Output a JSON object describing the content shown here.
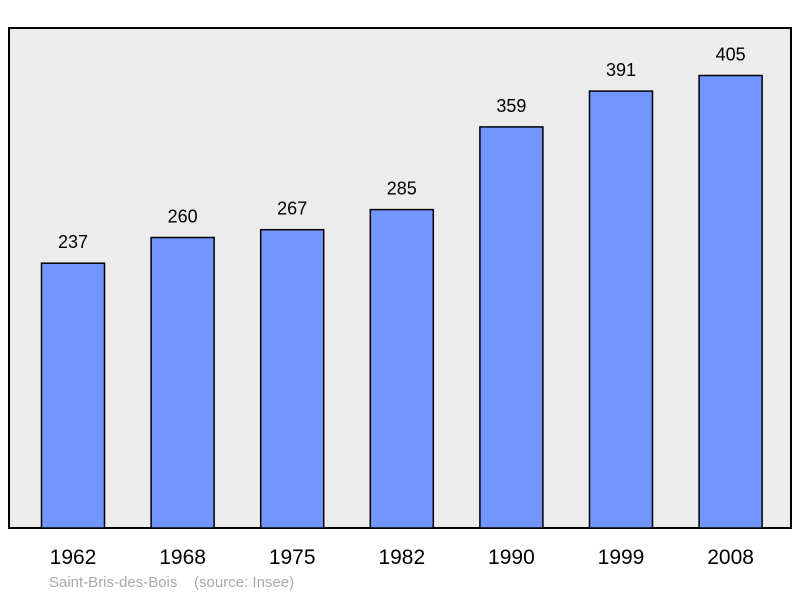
{
  "chart_data": {
    "type": "bar",
    "categories": [
      "1962",
      "1968",
      "1975",
      "1982",
      "1990",
      "1999",
      "2008"
    ],
    "values": [
      237,
      260,
      267,
      285,
      359,
      391,
      405
    ],
    "data_labels": [
      "237",
      "260",
      "267",
      "285",
      "359",
      "391",
      "405"
    ],
    "title": "",
    "xlabel": "",
    "ylabel": "",
    "ylim": [
      0,
      450
    ],
    "grid": false,
    "legend": "none",
    "bar_color": "#7196ff",
    "plot_background": "#ececec"
  },
  "caption": {
    "place": "Saint-Bris-des-Bois",
    "source": "(source: Insee)"
  }
}
